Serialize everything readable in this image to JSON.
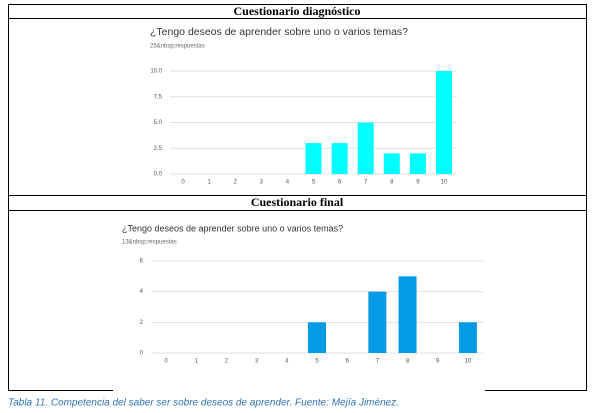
{
  "sections": [
    {
      "heading": "Cuestionario  diagnóstico",
      "chart": {
        "type": "bar",
        "title": "¿Tengo deseos de aprender sobre uno o varios temas?",
        "subtitle": "25&nbsp;respuestas",
        "categories": [
          "0",
          "1",
          "2",
          "3",
          "4",
          "5",
          "6",
          "7",
          "8",
          "9",
          "10"
        ],
        "values": [
          0,
          0,
          0,
          0,
          0,
          3,
          3,
          5,
          2,
          2,
          10
        ],
        "color": "#00ffff",
        "ylim": [
          0,
          10
        ],
        "yticks": [
          {
            "value": 0,
            "label": "0.0"
          },
          {
            "value": 2.5,
            "label": "2.5"
          },
          {
            "value": 5,
            "label": "5.0"
          },
          {
            "value": 7.5,
            "label": "7.5"
          },
          {
            "value": 10,
            "label": "10.0"
          }
        ],
        "grid": true
      }
    },
    {
      "heading": "Cuestionario  final",
      "chart": {
        "type": "bar",
        "title": "¿Tengo deseos de aprender sobre uno o varios temas?",
        "subtitle": "13&nbsp;respuestas",
        "categories": [
          "0",
          "1",
          "2",
          "3",
          "4",
          "5",
          "6",
          "7",
          "8",
          "9",
          "10"
        ],
        "values": [
          0,
          0,
          0,
          0,
          0,
          2,
          0,
          4,
          5,
          0,
          2
        ],
        "color": "#039be5",
        "ylim": [
          0,
          6
        ],
        "yticks": [
          0,
          2,
          4,
          6
        ],
        "grid": true
      }
    }
  ],
  "caption": "Tabla 11. Competencia del saber ser sobre deseos de aprender. Fuente: Mejía Jiménez."
}
